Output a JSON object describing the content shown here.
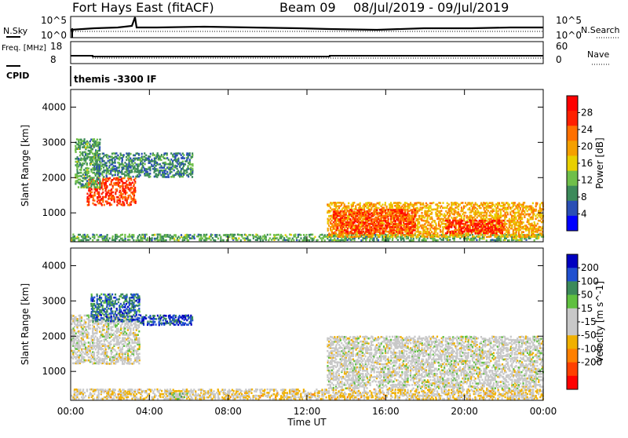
{
  "header": {
    "station": "Fort Hays East (fitACF)",
    "beam": "Beam 09",
    "date_range": "08/Jul/2019 - 09/Jul/2019"
  },
  "top_panels": {
    "nsky_label": "N.Sky",
    "nsearch_label": "N.Search",
    "count_ticks_left": [
      "10^5",
      "10^0"
    ],
    "count_ticks_right": [
      "10^5",
      "10^0"
    ],
    "freq_label": "Freq. [MHz]",
    "freq_ticks": [
      "18",
      "8"
    ],
    "nave_label": "Nave",
    "nave_ticks": [
      "60",
      "0"
    ],
    "cpid_label": "CPID",
    "cpid_text": "themis -3300 IF"
  },
  "colors": {
    "power_scale": [
      "#0000ff",
      "#2a4fb5",
      "#3c8a5a",
      "#6fbf4a",
      "#e8d000",
      "#f5a000",
      "#ff7000",
      "#ff2000",
      "#ff0000"
    ],
    "velocity_scale": [
      "#0000c0",
      "#2050d0",
      "#3c8a5a",
      "#60c040",
      "#c8c8c8",
      "#c8c8c8",
      "#f0b000",
      "#ff8000",
      "#ff4000",
      "#ff0000"
    ]
  },
  "chart_data": [
    {
      "type": "heatmap",
      "name": "power",
      "ylabel": "Slant Range [km]",
      "xlabel": "Time UT",
      "x_ticks": [
        "00:00",
        "04:00",
        "08:00",
        "12:00",
        "16:00",
        "20:00",
        "00:00"
      ],
      "y_ticks": [
        "1000",
        "2000",
        "3000",
        "4000"
      ],
      "ylim": [
        180,
        4500
      ],
      "xlim_hours": [
        0,
        24
      ],
      "colorbar_label": "Power [dB]",
      "colorbar_ticks": [
        "4",
        "8",
        "12",
        "16",
        "20",
        "24",
        "28"
      ],
      "colorbar_range": [
        0,
        30
      ],
      "features": [
        {
          "t": [
            0.8,
            3.3
          ],
          "r": [
            1200,
            2000
          ],
          "v": 24
        },
        {
          "t": [
            0.2,
            1.5
          ],
          "r": [
            1700,
            3100
          ],
          "v": 10
        },
        {
          "t": [
            1.2,
            6.2
          ],
          "r": [
            2000,
            2700
          ],
          "v": 8
        },
        {
          "t": [
            0,
            24
          ],
          "r": [
            200,
            400
          ],
          "v": 10
        },
        {
          "t": [
            13.0,
            24
          ],
          "r": [
            300,
            1300
          ],
          "v": 18
        },
        {
          "t": [
            13.3,
            17.5
          ],
          "r": [
            400,
            1100
          ],
          "v": 24
        },
        {
          "t": [
            19.0,
            22.0
          ],
          "r": [
            400,
            800
          ],
          "v": 26
        }
      ]
    },
    {
      "type": "heatmap",
      "name": "velocity",
      "ylabel": "Slant Range [km]",
      "xlabel": "Time UT",
      "x_ticks": [
        "00:00",
        "04:00",
        "08:00",
        "12:00",
        "16:00",
        "20:00",
        "00:00"
      ],
      "y_ticks": [
        "1000",
        "2000",
        "3000",
        "4000"
      ],
      "ylim": [
        180,
        4500
      ],
      "xlim_hours": [
        0,
        24
      ],
      "colorbar_label": "Velocity [m s^-1]",
      "colorbar_ticks": [
        "200",
        "100",
        "50",
        "15",
        "-15",
        "-50",
        "-100",
        "-200"
      ],
      "colorbar_range": [
        -250,
        250
      ],
      "features": [
        {
          "t": [
            0.0,
            3.5
          ],
          "r": [
            1200,
            2600
          ],
          "v": 0
        },
        {
          "t": [
            1.0,
            3.5
          ],
          "r": [
            2400,
            3200
          ],
          "v": 150
        },
        {
          "t": [
            3.5,
            6.2
          ],
          "r": [
            2300,
            2600
          ],
          "v": 180
        },
        {
          "t": [
            0,
            24
          ],
          "r": [
            200,
            500
          ],
          "v": -40
        },
        {
          "t": [
            13.0,
            24
          ],
          "r": [
            500,
            2000
          ],
          "v": 0
        },
        {
          "t": [
            5.0,
            6.0
          ],
          "r": [
            200,
            400
          ],
          "v": 60
        }
      ]
    }
  ]
}
